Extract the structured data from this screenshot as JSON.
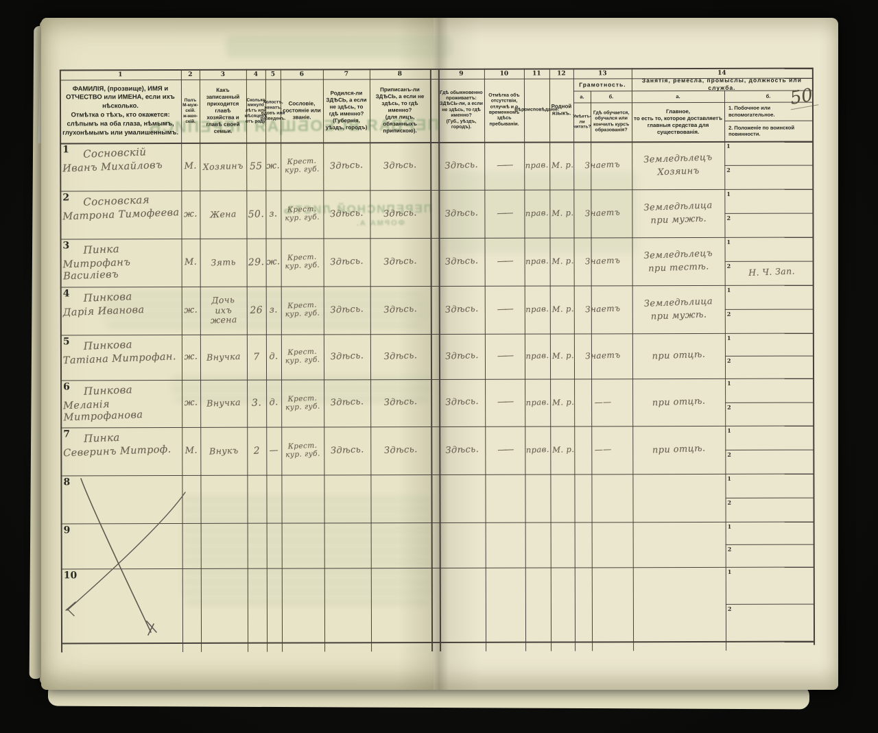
{
  "page": {
    "number": "50"
  },
  "bleedthrough": {
    "title_mirror": "ПЕРВАЯ ВСЕОБЩАЯ ПЕРЕПИСЬ",
    "sheet_mirror": "ПЕРЕПИСНОЙ ЛИСТЪ",
    "form_mirror": "ФОРМА А."
  },
  "table": {
    "column_numbers": [
      "1",
      "2",
      "3",
      "4",
      "5",
      "6",
      "7",
      "8",
      "9",
      "10",
      "11",
      "12",
      "13",
      "14"
    ],
    "headers": {
      "col1": "ФАМИЛІЯ, (прозвище), ИМЯ и ОТЧЕСТВО или ИМЕНА, если ихъ нѣсколько.\nОтмѣтка о тѣхъ, кто окажется: слѣпымъ на оба глаза, нѣмымъ, глухонѣмымъ или умалишеннымъ.",
      "col2": "Полъ\nМ-муж-скій.\nж-жен-скій.",
      "col3": "Какъ записанный приходится главѣ хозяйства и главѣ своей семьи.",
      "col4": "Сколько минуло лѣтъ или мѣсяцевъ отъ роду.",
      "col5": "Холостъ, женатъ, вдовъ или разведенъ.",
      "col6": "Сословіе, состояніе или званіе.",
      "col7": "Родился-ли ЗДѢСЬ, а если не здѣсь, то гдѣ именно?\n(Губернія, уѣздъ, городъ)",
      "col8": "Приписанъ-ли ЗДѢСЬ, а если не здѣсь, то гдѣ именно?\n(для лицъ, обязанныхъ припискою).",
      "col9": "Гдѣ обыкновенно проживаетъ: ЗДѢСЬ-ли, а если не здѣсь, то гдѣ именно?\n(Губ., уѣздъ, городъ).",
      "col10": "Отмѣтка объ отсутствіи, отлучкѣ и о временномъ здѣсь пребываніи.",
      "col11": "Вѣроисповѣданіе.",
      "col12": "Родной языкъ.",
      "col13_group": "Грамотность.",
      "col13a_label": "а.",
      "col13b_label": "б.",
      "col13a": "Умѣетъ-ли читать?",
      "col13b": "Гдѣ обучается, обучался или кончилъ курсъ образованія?",
      "col14_group": "Занятія, ремесла, промыслы, должность или служба.",
      "col14a_label": "а.",
      "col14b_label": "б.",
      "col14a": "Главное,\nто есть то, которое доставляетъ главныя средства для существованія.",
      "col14b_1": "1.  Побочное или вспомогательное.",
      "col14b_2": "2.  Положеніе по воинской повинности."
    },
    "side_row_labels": [
      "1",
      "2"
    ],
    "rows": [
      {
        "num": "1",
        "surname": "Сосновскій",
        "name": "Иванъ Михайловъ",
        "sex": "М.",
        "relation": "Хозяинъ",
        "age": "55",
        "marital": "ж.",
        "estate": "Крест.\nкур. губ.",
        "born": "Здѣсь.",
        "registered": "Здѣсь.",
        "resides": "Здѣсь.",
        "absence": "——",
        "religion": "прав.",
        "language": "М. р.",
        "literacy": "Знаетъ",
        "occupation_main": "Земледѣлецъ\nХозяинъ",
        "side_1": "",
        "side_2": ""
      },
      {
        "num": "2",
        "surname": "Сосновская",
        "name": "Матрона Тимофеева",
        "sex": "ж.",
        "relation": "Жена",
        "age": "50.",
        "marital": "з.",
        "estate": "Крест.\nкур. губ.",
        "born": "Здѣсь.",
        "registered": "Здѣсь.",
        "resides": "Здѣсь.",
        "absence": "——",
        "religion": "прав.",
        "language": "М. р.",
        "literacy": "Знаетъ",
        "occupation_main": "Земледѣлица\nпри мужѣ.",
        "side_1": "",
        "side_2": ""
      },
      {
        "num": "3",
        "surname": "Пинка",
        "name": "Митрофанъ Василіевъ",
        "sex": "М.",
        "relation": "Зять",
        "age": "29.",
        "marital": "ж.",
        "estate": "Крест.\nкур. губ.",
        "born": "Здѣсь.",
        "registered": "Здѣсь.",
        "resides": "Здѣсь.",
        "absence": "——",
        "religion": "прав.",
        "language": "М. р.",
        "literacy": "Знаетъ",
        "occupation_main": "Земледѣлецъ\nпри тестѣ.",
        "side_1": "",
        "side_2": "Н. Ч. Зап."
      },
      {
        "num": "4",
        "surname": "Пинкова",
        "name": "Дарія Иванова",
        "sex": "ж.",
        "relation": "Дочь\nихъ\nжена",
        "age": "26",
        "marital": "з.",
        "estate": "Крест.\nкур. губ.",
        "born": "Здѣсь.",
        "registered": "Здѣсь.",
        "resides": "Здѣсь.",
        "absence": "——",
        "religion": "прав.",
        "language": "М. р.",
        "literacy": "Знаетъ",
        "occupation_main": "Земледѣлица\nпри мужѣ.",
        "side_1": "",
        "side_2": ""
      },
      {
        "num": "5",
        "surname": "Пинкова",
        "name": "Татіана Митрофан.",
        "sex": "ж.",
        "relation": "Внучка",
        "age": "7",
        "marital": "д.",
        "estate": "Крест.\nкур. губ.",
        "born": "Здѣсь.",
        "registered": "Здѣсь.",
        "resides": "Здѣсь.",
        "absence": "——",
        "religion": "прав.",
        "language": "М. р.",
        "literacy": "Знаетъ",
        "occupation_main": "при отцѣ.",
        "side_1": "",
        "side_2": ""
      },
      {
        "num": "6",
        "surname": "Пинкова",
        "name": "Меланія Митрофанова",
        "sex": "ж.",
        "relation": "Внучка",
        "age": "3.",
        "marital": "д.",
        "estate": "Крест.\nкур. губ.",
        "born": "Здѣсь.",
        "registered": "Здѣсь.",
        "resides": "Здѣсь.",
        "absence": "——",
        "religion": "прав.",
        "language": "М. р.",
        "literacy": "——",
        "occupation_main": "при отцѣ.",
        "side_1": "",
        "side_2": ""
      },
      {
        "num": "7",
        "surname": "Пинка",
        "name": "Северинъ Митроф.",
        "sex": "М.",
        "relation": "Внукъ",
        "age": "2",
        "marital": "—",
        "estate": "Крест.\nкур. губ.",
        "born": "Здѣсь.",
        "registered": "Здѣсь.",
        "resides": "Здѣсь.",
        "absence": "——",
        "religion": "прав.",
        "language": "М. р.",
        "literacy": "——",
        "occupation_main": "при отцѣ.",
        "side_1": "",
        "side_2": ""
      },
      {
        "num": "8",
        "surname": "",
        "name": "",
        "sex": "",
        "relation": "",
        "age": "",
        "marital": "",
        "estate": "",
        "born": "",
        "registered": "",
        "resides": "",
        "absence": "",
        "religion": "",
        "language": "",
        "literacy": "",
        "occupation_main": "",
        "side_1": "",
        "side_2": ""
      },
      {
        "num": "9",
        "surname": "",
        "name": "",
        "sex": "",
        "relation": "",
        "age": "",
        "marital": "",
        "estate": "",
        "born": "",
        "registered": "",
        "resides": "",
        "absence": "",
        "religion": "",
        "language": "",
        "literacy": "",
        "occupation_main": "",
        "side_1": "",
        "side_2": ""
      },
      {
        "num": "10",
        "surname": "",
        "name": "",
        "sex": "",
        "relation": "",
        "age": "",
        "marital": "",
        "estate": "",
        "born": "",
        "registered": "",
        "resides": "",
        "absence": "",
        "religion": "",
        "language": "",
        "literacy": "",
        "occupation_main": "",
        "side_1": "",
        "side_2": ""
      }
    ]
  }
}
